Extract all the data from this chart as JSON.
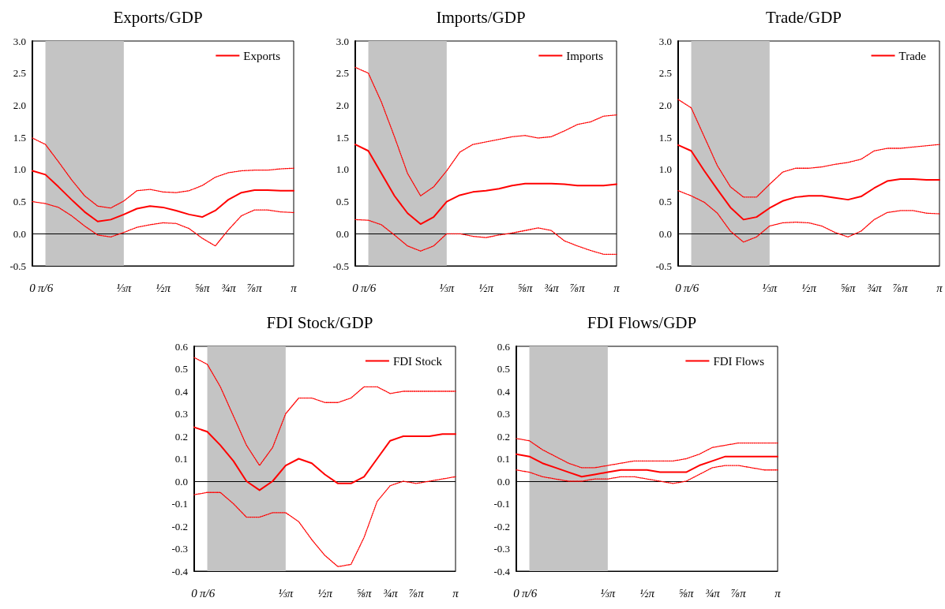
{
  "chart_data": [
    {
      "type": "line",
      "title": "Exports/GDP",
      "categories": [
        "0",
        "π/6",
        null,
        null,
        null,
        null,
        null,
        "⅓π",
        null,
        null,
        "½π",
        null,
        null,
        "⅝π",
        null,
        "¾π",
        null,
        "⅞π",
        null,
        null,
        "π"
      ],
      "ylim": [
        -0.5,
        3
      ],
      "yticks": [
        {
          "value": -0.5,
          "label": "-0.5"
        },
        {
          "value": 0,
          "label": "0.0"
        },
        {
          "value": 0.5,
          "label": "0.5"
        },
        {
          "value": 1,
          "label": "1.0"
        },
        {
          "value": 1.5,
          "label": "1.5"
        },
        {
          "value": 2,
          "label": "2.0"
        },
        {
          "value": 2.5,
          "label": "2.5"
        },
        {
          "value": 3,
          "label": "3.0"
        }
      ],
      "grid": false,
      "legend": "top right",
      "marker": "none",
      "bands": [
        {
          "axis": "x",
          "from": "π/6",
          "to": "⅓π",
          "color": "#c4c4c4"
        }
      ],
      "ref_lines": [
        {
          "axis": "y",
          "value": 0,
          "color": "#000000"
        }
      ],
      "series": [
        {
          "name": "Exports",
          "color": "#ff0000",
          "line_style": "solid",
          "values": [
            0.98,
            0.92,
            0.73,
            0.53,
            0.34,
            0.19,
            0.22,
            0.3,
            0.39,
            0.43,
            0.41,
            0.36,
            0.3,
            0.26,
            0.36,
            0.53,
            0.64,
            0.68,
            0.68,
            0.67,
            0.67
          ]
        },
        {
          "color": "#ff0000",
          "line_style": "dotted",
          "values": [
            1.49,
            1.39,
            1.12,
            0.84,
            0.59,
            0.43,
            0.4,
            0.51,
            0.67,
            0.69,
            0.65,
            0.64,
            0.67,
            0.75,
            0.88,
            0.95,
            0.98,
            0.99,
            0.99,
            1.01,
            1.02
          ]
        },
        {
          "color": "#ff0000",
          "line_style": "dotted",
          "values": [
            0.5,
            0.47,
            0.41,
            0.28,
            0.12,
            -0.02,
            -0.05,
            0.02,
            0.1,
            0.14,
            0.17,
            0.16,
            0.08,
            -0.07,
            -0.19,
            0.06,
            0.28,
            0.37,
            0.37,
            0.34,
            0.33
          ]
        }
      ]
    },
    {
      "type": "line",
      "title": "Imports/GDP",
      "categories": [
        "0",
        "π/6",
        null,
        null,
        null,
        null,
        null,
        "⅓π",
        null,
        null,
        "½π",
        null,
        null,
        "⅝π",
        null,
        "¾π",
        null,
        "⅞π",
        null,
        null,
        "π"
      ],
      "ylim": [
        -0.5,
        3
      ],
      "yticks": [
        {
          "value": -0.5,
          "label": "-0.5"
        },
        {
          "value": 0,
          "label": "0.0"
        },
        {
          "value": 0.5,
          "label": "0.5"
        },
        {
          "value": 1,
          "label": "1.0"
        },
        {
          "value": 1.5,
          "label": "1.5"
        },
        {
          "value": 2,
          "label": "2.0"
        },
        {
          "value": 2.5,
          "label": "2.5"
        },
        {
          "value": 3,
          "label": "3.0"
        }
      ],
      "grid": false,
      "legend": "top right",
      "marker": "none",
      "bands": [
        {
          "axis": "x",
          "from": "π/6",
          "to": "⅓π",
          "color": "#c4c4c4"
        }
      ],
      "ref_lines": [
        {
          "axis": "y",
          "value": 0,
          "color": "#000000"
        }
      ],
      "series": [
        {
          "name": "Imports",
          "color": "#ff0000",
          "line_style": "solid",
          "values": [
            1.39,
            1.29,
            0.94,
            0.59,
            0.32,
            0.15,
            0.26,
            0.5,
            0.6,
            0.65,
            0.67,
            0.7,
            0.75,
            0.78,
            0.78,
            0.78,
            0.77,
            0.75,
            0.75,
            0.75,
            0.77
          ]
        },
        {
          "color": "#ff0000",
          "line_style": "dotted",
          "values": [
            2.59,
            2.5,
            2.05,
            1.51,
            0.94,
            0.59,
            0.73,
            0.98,
            1.27,
            1.39,
            1.43,
            1.47,
            1.51,
            1.53,
            1.49,
            1.51,
            1.6,
            1.7,
            1.74,
            1.83,
            1.85
          ]
        },
        {
          "color": "#ff0000",
          "line_style": "dotted",
          "values": [
            0.22,
            0.21,
            0.14,
            -0.02,
            -0.19,
            -0.27,
            -0.19,
            0,
            0,
            -0.04,
            -0.06,
            -0.02,
            0.01,
            0.05,
            0.09,
            0.05,
            -0.11,
            -0.19,
            -0.26,
            -0.32,
            -0.32
          ]
        }
      ]
    },
    {
      "type": "line",
      "title": "Trade/GDP",
      "categories": [
        "0",
        "π/6",
        null,
        null,
        null,
        null,
        null,
        "⅓π",
        null,
        null,
        "½π",
        null,
        null,
        "⅝π",
        null,
        "¾π",
        null,
        "⅞π",
        null,
        null,
        "π"
      ],
      "ylim": [
        -0.5,
        3
      ],
      "yticks": [
        {
          "value": -0.5,
          "label": "-0.5"
        },
        {
          "value": 0,
          "label": "0.0"
        },
        {
          "value": 0.5,
          "label": "0.5"
        },
        {
          "value": 1,
          "label": "1.0"
        },
        {
          "value": 1.5,
          "label": "1.5"
        },
        {
          "value": 2,
          "label": "2.0"
        },
        {
          "value": 2.5,
          "label": "2.5"
        },
        {
          "value": 3,
          "label": "3.0"
        }
      ],
      "grid": false,
      "legend": "top right",
      "marker": "none",
      "bands": [
        {
          "axis": "x",
          "from": "π/6",
          "to": "⅓π",
          "color": "#c4c4c4"
        }
      ],
      "ref_lines": [
        {
          "axis": "y",
          "value": 0,
          "color": "#000000"
        }
      ],
      "series": [
        {
          "name": "Trade",
          "color": "#ff0000",
          "line_style": "solid",
          "values": [
            1.38,
            1.29,
            0.98,
            0.69,
            0.41,
            0.22,
            0.26,
            0.4,
            0.51,
            0.57,
            0.59,
            0.59,
            0.56,
            0.53,
            0.58,
            0.71,
            0.82,
            0.85,
            0.85,
            0.84,
            0.84
          ]
        },
        {
          "color": "#ff0000",
          "line_style": "dotted",
          "values": [
            2.09,
            1.96,
            1.51,
            1.06,
            0.73,
            0.57,
            0.57,
            0.77,
            0.96,
            1.02,
            1.02,
            1.04,
            1.08,
            1.11,
            1.16,
            1.29,
            1.33,
            1.33,
            1.35,
            1.37,
            1.39
          ]
        },
        {
          "color": "#ff0000",
          "line_style": "dotted",
          "values": [
            0.67,
            0.59,
            0.49,
            0.32,
            0.04,
            -0.13,
            -0.05,
            0.12,
            0.17,
            0.18,
            0.17,
            0.12,
            0.02,
            -0.05,
            0.04,
            0.22,
            0.33,
            0.36,
            0.36,
            0.32,
            0.31
          ]
        }
      ]
    },
    {
      "type": "line",
      "title": "FDI Stock/GDP",
      "categories": [
        "0",
        "π/6",
        null,
        null,
        null,
        null,
        null,
        "⅓π",
        null,
        null,
        "½π",
        null,
        null,
        "⅝π",
        null,
        "¾π",
        null,
        "⅞π",
        null,
        null,
        "π"
      ],
      "ylim": [
        -0.4,
        0.6
      ],
      "yticks": [
        {
          "value": -0.4,
          "label": "-0.4"
        },
        {
          "value": -0.3,
          "label": "-0.3"
        },
        {
          "value": -0.2,
          "label": "-0.2"
        },
        {
          "value": -0.1,
          "label": "-0.1"
        },
        {
          "value": 0,
          "label": "0.0"
        },
        {
          "value": 0.1,
          "label": "0.1"
        },
        {
          "value": 0.2,
          "label": "0.2"
        },
        {
          "value": 0.3,
          "label": "0.3"
        },
        {
          "value": 0.4,
          "label": "0.4"
        },
        {
          "value": 0.5,
          "label": "0.5"
        },
        {
          "value": 0.6,
          "label": "0.6"
        }
      ],
      "grid": false,
      "legend": "top right",
      "marker": "none",
      "bands": [
        {
          "axis": "x",
          "from": "π/6",
          "to": "⅓π",
          "color": "#c4c4c4"
        }
      ],
      "ref_lines": [
        {
          "axis": "y",
          "value": 0,
          "color": "#000000"
        }
      ],
      "series": [
        {
          "name": "FDI Stock",
          "color": "#ff0000",
          "line_style": "solid",
          "values": [
            0.24,
            0.22,
            0.16,
            0.09,
            0,
            -0.04,
            0,
            0.07,
            0.1,
            0.08,
            0.03,
            -0.01,
            -0.01,
            0.02,
            0.1,
            0.18,
            0.2,
            0.2,
            0.2,
            0.21,
            0.21
          ]
        },
        {
          "color": "#ff0000",
          "line_style": "dotted",
          "values": [
            0.55,
            0.52,
            0.42,
            0.29,
            0.16,
            0.07,
            0.15,
            0.3,
            0.37,
            0.37,
            0.35,
            0.35,
            0.37,
            0.42,
            0.42,
            0.39,
            0.4,
            0.4,
            0.4,
            0.4,
            0.4
          ]
        },
        {
          "color": "#ff0000",
          "line_style": "dotted",
          "values": [
            -0.06,
            -0.05,
            -0.05,
            -0.1,
            -0.16,
            -0.16,
            -0.14,
            -0.14,
            -0.18,
            -0.26,
            -0.33,
            -0.38,
            -0.37,
            -0.25,
            -0.09,
            -0.02,
            0,
            -0.01,
            0,
            0.01,
            0.02
          ]
        }
      ]
    },
    {
      "type": "line",
      "title": "FDI Flows/GDP",
      "categories": [
        "0",
        "π/6",
        null,
        null,
        null,
        null,
        null,
        "⅓π",
        null,
        null,
        "½π",
        null,
        null,
        "⅝π",
        null,
        "¾π",
        null,
        "⅞π",
        null,
        null,
        "π"
      ],
      "ylim": [
        -0.4,
        0.6
      ],
      "yticks": [
        {
          "value": -0.4,
          "label": "-0.4"
        },
        {
          "value": -0.3,
          "label": "-0.3"
        },
        {
          "value": -0.2,
          "label": "-0.2"
        },
        {
          "value": -0.1,
          "label": "-0.1"
        },
        {
          "value": 0,
          "label": "0.0"
        },
        {
          "value": 0.1,
          "label": "0.1"
        },
        {
          "value": 0.2,
          "label": "0.2"
        },
        {
          "value": 0.3,
          "label": "0.3"
        },
        {
          "value": 0.4,
          "label": "0.4"
        },
        {
          "value": 0.5,
          "label": "0.5"
        },
        {
          "value": 0.6,
          "label": "0.6"
        }
      ],
      "grid": false,
      "legend": "top right",
      "marker": "none",
      "bands": [
        {
          "axis": "x",
          "from": "π/6",
          "to": "⅓π",
          "color": "#c4c4c4"
        }
      ],
      "ref_lines": [
        {
          "axis": "y",
          "value": 0,
          "color": "#000000"
        }
      ],
      "series": [
        {
          "name": "FDI Flows",
          "color": "#ff0000",
          "line_style": "solid",
          "values": [
            0.12,
            0.11,
            0.08,
            0.06,
            0.04,
            0.02,
            0.03,
            0.04,
            0.05,
            0.05,
            0.05,
            0.04,
            0.04,
            0.04,
            0.07,
            0.09,
            0.11,
            0.11,
            0.11,
            0.11,
            0.11
          ]
        },
        {
          "color": "#ff0000",
          "line_style": "dotted",
          "values": [
            0.19,
            0.18,
            0.14,
            0.11,
            0.08,
            0.06,
            0.06,
            0.07,
            0.08,
            0.09,
            0.09,
            0.09,
            0.09,
            0.1,
            0.12,
            0.15,
            0.16,
            0.17,
            0.17,
            0.17,
            0.17
          ]
        },
        {
          "color": "#ff0000",
          "line_style": "dotted",
          "values": [
            0.05,
            0.04,
            0.02,
            0.01,
            0,
            0,
            0.01,
            0.01,
            0.02,
            0.02,
            0.01,
            0,
            -0.01,
            0,
            0.03,
            0.06,
            0.07,
            0.07,
            0.06,
            0.05,
            0.05
          ]
        }
      ]
    }
  ]
}
